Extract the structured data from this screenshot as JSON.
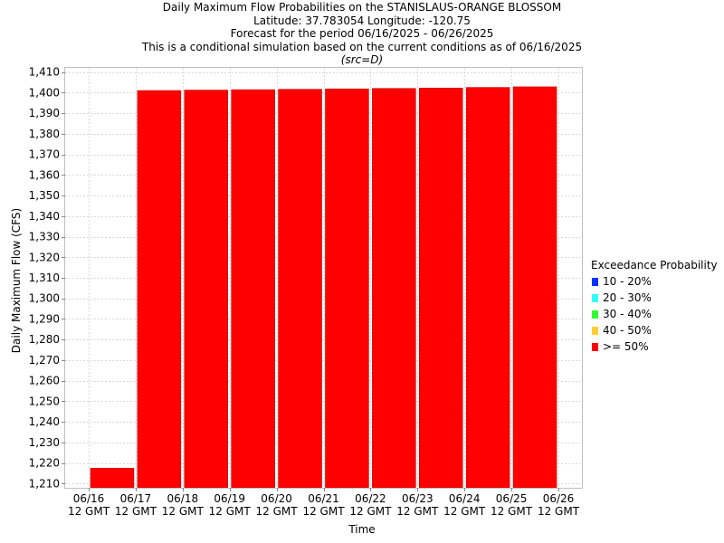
{
  "header": {
    "title_line1": "Daily Maximum Flow Probabilities on the STANISLAUS-ORANGE BLOSSOM",
    "title_line2": "Latitude: 37.783054 Longitude: -120.75",
    "title_line3": "Forecast for the period 06/16/2025 - 06/26/2025",
    "title_line4": "This is a conditional simulation based on the current conditions as of 06/16/2025",
    "src_note": "(src=D)"
  },
  "legend": {
    "title": "Exceedance Probability",
    "items": [
      {
        "label": "10 - 20%",
        "color": "#0033ff"
      },
      {
        "label": "20 - 30%",
        "color": "#33ffff"
      },
      {
        "label": "30 - 40%",
        "color": "#33ff33"
      },
      {
        "label": "40 - 50%",
        "color": "#ffcc33"
      },
      {
        "label": ">= 50%",
        "color": "#ff0000"
      }
    ]
  },
  "chart_data": {
    "type": "bar",
    "title": "Daily Maximum Flow Probabilities on the STANISLAUS-ORANGE BLOSSOM",
    "xlabel": "Time",
    "ylabel": "Daily Maximum Flow (CFS)",
    "ylim": [
      1208,
      1412
    ],
    "yticks": [
      "1,210",
      "1,220",
      "1,230",
      "1,240",
      "1,250",
      "1,260",
      "1,270",
      "1,280",
      "1,290",
      "1,300",
      "1,310",
      "1,320",
      "1,330",
      "1,340",
      "1,350",
      "1,360",
      "1,370",
      "1,380",
      "1,390",
      "1,400",
      "1,410"
    ],
    "ytick_values": [
      1210,
      1220,
      1230,
      1240,
      1250,
      1260,
      1270,
      1280,
      1290,
      1300,
      1310,
      1320,
      1330,
      1340,
      1350,
      1360,
      1370,
      1380,
      1390,
      1400,
      1410
    ],
    "xticks": [
      {
        "line1": "06/16",
        "line2": "12 GMT"
      },
      {
        "line1": "06/17",
        "line2": "12 GMT"
      },
      {
        "line1": "06/18",
        "line2": "12 GMT"
      },
      {
        "line1": "06/19",
        "line2": "12 GMT"
      },
      {
        "line1": "06/20",
        "line2": "12 GMT"
      },
      {
        "line1": "06/21",
        "line2": "12 GMT"
      },
      {
        "line1": "06/22",
        "line2": "12 GMT"
      },
      {
        "line1": "06/23",
        "line2": "12 GMT"
      },
      {
        "line1": "06/24",
        "line2": "12 GMT"
      },
      {
        "line1": "06/25",
        "line2": "12 GMT"
      },
      {
        "line1": "06/26",
        "line2": "12 GMT"
      }
    ],
    "bars": [
      {
        "start": "06/16 12 GMT",
        "end": "06/17 12 GMT",
        "value": 1217.5,
        "color": "#ff0000"
      },
      {
        "start": "06/17 12 GMT",
        "end": "06/18 12 GMT",
        "value": 1401.0,
        "color": "#ff0000"
      },
      {
        "start": "06/18 12 GMT",
        "end": "06/19 12 GMT",
        "value": 1401.2,
        "color": "#ff0000"
      },
      {
        "start": "06/19 12 GMT",
        "end": "06/20 12 GMT",
        "value": 1401.4,
        "color": "#ff0000"
      },
      {
        "start": "06/20 12 GMT",
        "end": "06/21 12 GMT",
        "value": 1401.6,
        "color": "#ff0000"
      },
      {
        "start": "06/21 12 GMT",
        "end": "06/22 12 GMT",
        "value": 1401.8,
        "color": "#ff0000"
      },
      {
        "start": "06/22 12 GMT",
        "end": "06/23 12 GMT",
        "value": 1402.0,
        "color": "#ff0000"
      },
      {
        "start": "06/23 12 GMT",
        "end": "06/24 12 GMT",
        "value": 1402.2,
        "color": "#ff0000"
      },
      {
        "start": "06/24 12 GMT",
        "end": "06/25 12 GMT",
        "value": 1402.5,
        "color": "#ff0000"
      },
      {
        "start": "06/25 12 GMT",
        "end": "06/26 12 GMT",
        "value": 1402.8,
        "color": "#ff0000"
      }
    ],
    "grid": true,
    "legend_position": "right"
  }
}
